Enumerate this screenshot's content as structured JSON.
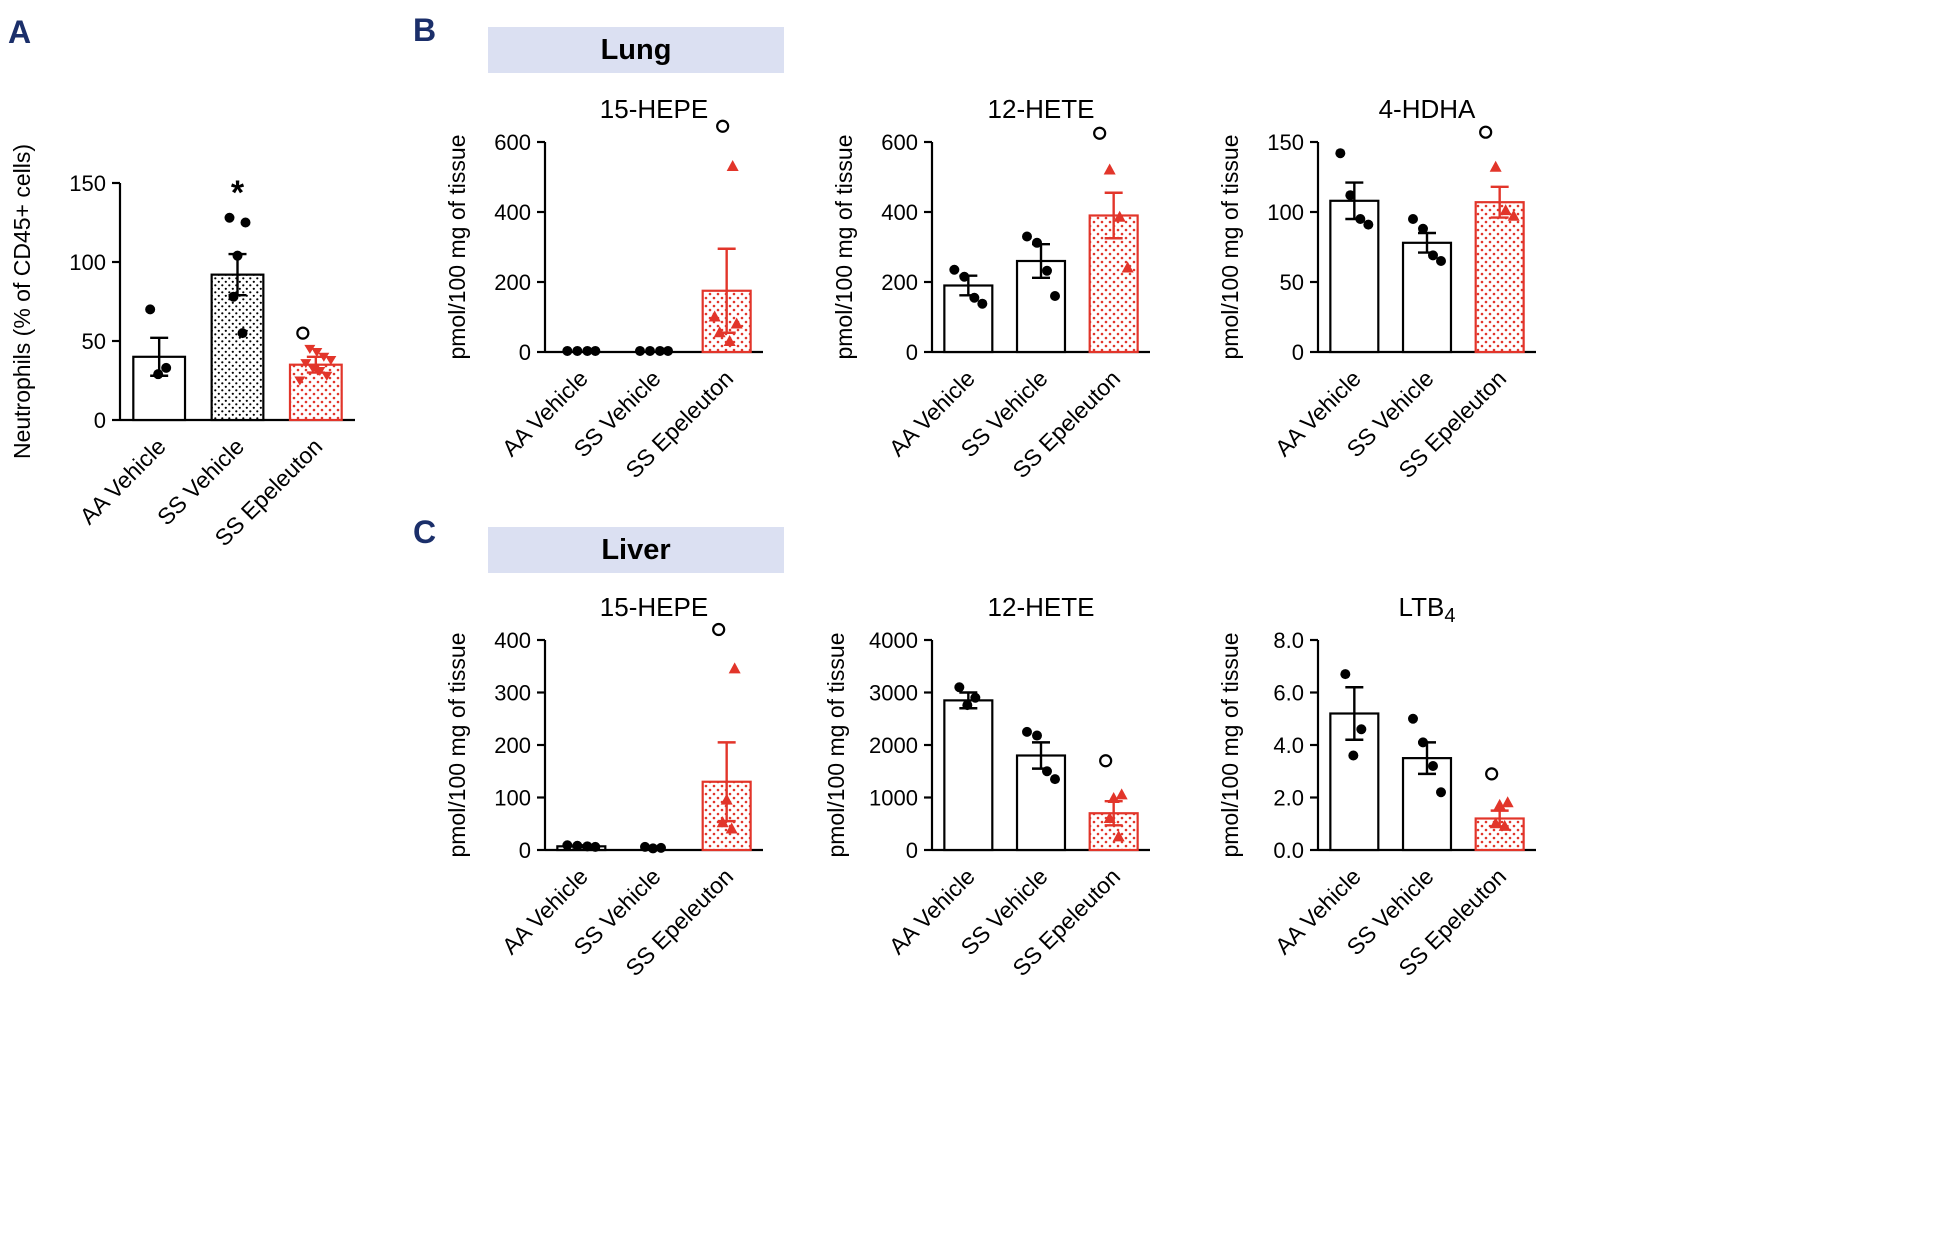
{
  "colors": {
    "red": "#e2352a",
    "black": "#000000",
    "header_bg": "#dbe0f2",
    "panel_label": "#1b2f6a"
  },
  "panels": {
    "A": {
      "label": "A"
    },
    "B": {
      "label": "B",
      "header": "Lung"
    },
    "C": {
      "label": "C",
      "header": "Liver"
    }
  },
  "chart_data": [
    {
      "id": "neutrophils",
      "panel": "A",
      "type": "bar",
      "title": "",
      "ylabel": "Neutrophils (% of CD45+ cells)",
      "ylim": [
        0,
        150
      ],
      "yticks": [
        0,
        50,
        100,
        150
      ],
      "ytick_labels": [
        "0",
        "50",
        "100",
        "150"
      ],
      "categories": [
        "AA Vehicle",
        "SS Vehicle",
        "SS Epeleuton"
      ],
      "bars": [
        {
          "label": "AA Vehicle",
          "mean": 40,
          "sem": 12,
          "fill": "white",
          "stroke": "black",
          "points": [
            {
              "v": 70,
              "m": "dot"
            },
            {
              "v": 33,
              "m": "dot"
            },
            {
              "v": 29,
              "m": "dot"
            }
          ]
        },
        {
          "label": "SS Vehicle",
          "mean": 92,
          "sem": 13,
          "fill": "dots-black",
          "stroke": "black",
          "sig": "*",
          "points": [
            {
              "v": 128,
              "m": "dot"
            },
            {
              "v": 125,
              "m": "dot"
            },
            {
              "v": 104,
              "m": "dot"
            },
            {
              "v": 78,
              "m": "dot"
            },
            {
              "v": 55,
              "m": "dot"
            }
          ]
        },
        {
          "label": "SS Epeleuton",
          "mean": 35,
          "sem": 5,
          "fill": "dots-red",
          "stroke": "red",
          "points": [
            {
              "v": 55,
              "m": "circle"
            },
            {
              "v": 45,
              "m": "tri-down"
            },
            {
              "v": 43,
              "m": "tri-down"
            },
            {
              "v": 40,
              "m": "tri-down"
            },
            {
              "v": 38,
              "m": "tri-down"
            },
            {
              "v": 36,
              "m": "tri-down"
            },
            {
              "v": 33,
              "m": "tri-down"
            },
            {
              "v": 31,
              "m": "tri-down"
            },
            {
              "v": 28,
              "m": "tri-down"
            },
            {
              "v": 25,
              "m": "tri-down"
            }
          ]
        }
      ]
    },
    {
      "id": "lung-15-hepe",
      "panel": "B",
      "type": "bar",
      "title": "15-HEPE",
      "ylabel": "pmol/100 mg of tissue",
      "ylim": [
        0,
        600
      ],
      "yticks": [
        0,
        200,
        400,
        600
      ],
      "ytick_labels": [
        "0",
        "200",
        "400",
        "600"
      ],
      "categories": [
        "AA Vehicle",
        "SS Vehicle",
        "SS Epeleuton"
      ],
      "bars": [
        {
          "label": "AA Vehicle",
          "mean": 2,
          "sem": 0,
          "fill": "white",
          "stroke": "black",
          "points": [
            {
              "v": 3,
              "m": "dot"
            },
            {
              "v": 3,
              "m": "dot"
            },
            {
              "v": 3,
              "m": "dot"
            },
            {
              "v": 3,
              "m": "dot"
            }
          ]
        },
        {
          "label": "SS Vehicle",
          "mean": 2,
          "sem": 0,
          "fill": "white",
          "stroke": "black",
          "points": [
            {
              "v": 3,
              "m": "dot"
            },
            {
              "v": 3,
              "m": "dot"
            },
            {
              "v": 3,
              "m": "dot"
            },
            {
              "v": 3,
              "m": "dot"
            }
          ]
        },
        {
          "label": "SS Epeleuton",
          "mean": 175,
          "sem": 120,
          "fill": "dots-red",
          "stroke": "red",
          "points": [
            {
              "v": 645,
              "m": "circle"
            },
            {
              "v": 530,
              "m": "tri"
            },
            {
              "v": 100,
              "m": "tri"
            },
            {
              "v": 80,
              "m": "tri"
            },
            {
              "v": 55,
              "m": "tri"
            },
            {
              "v": 30,
              "m": "tri"
            }
          ]
        }
      ]
    },
    {
      "id": "lung-12-hete",
      "panel": "B",
      "type": "bar",
      "title": "12-HETE",
      "ylabel": "pmol/100 mg of tissue",
      "ylim": [
        0,
        600
      ],
      "yticks": [
        0,
        200,
        400,
        600
      ],
      "ytick_labels": [
        "0",
        "200",
        "400",
        "600"
      ],
      "categories": [
        "AA Vehicle",
        "SS Vehicle",
        "SS Epeleuton"
      ],
      "bars": [
        {
          "label": "AA Vehicle",
          "mean": 190,
          "sem": 28,
          "fill": "white",
          "stroke": "black",
          "points": [
            {
              "v": 235,
              "m": "dot"
            },
            {
              "v": 215,
              "m": "dot"
            },
            {
              "v": 155,
              "m": "dot"
            },
            {
              "v": 138,
              "m": "dot"
            }
          ]
        },
        {
          "label": "SS Vehicle",
          "mean": 260,
          "sem": 48,
          "fill": "white",
          "stroke": "black",
          "points": [
            {
              "v": 330,
              "m": "dot"
            },
            {
              "v": 312,
              "m": "dot"
            },
            {
              "v": 232,
              "m": "dot"
            },
            {
              "v": 160,
              "m": "dot"
            }
          ]
        },
        {
          "label": "SS Epeleuton",
          "mean": 390,
          "sem": 65,
          "fill": "dots-red",
          "stroke": "red",
          "points": [
            {
              "v": 625,
              "m": "circle"
            },
            {
              "v": 520,
              "m": "tri"
            },
            {
              "v": 385,
              "m": "tri"
            },
            {
              "v": 240,
              "m": "tri"
            }
          ]
        }
      ]
    },
    {
      "id": "lung-4-hdha",
      "panel": "B",
      "type": "bar",
      "title": "4-HDHA",
      "ylabel": "pmol/100 mg of tissue",
      "ylim": [
        0,
        150
      ],
      "yticks": [
        0,
        50,
        100,
        150
      ],
      "ytick_labels": [
        "0",
        "50",
        "100",
        "150"
      ],
      "categories": [
        "AA Vehicle",
        "SS Vehicle",
        "SS Epeleuton"
      ],
      "bars": [
        {
          "label": "AA Vehicle",
          "mean": 108,
          "sem": 13,
          "fill": "white",
          "stroke": "black",
          "points": [
            {
              "v": 142,
              "m": "dot"
            },
            {
              "v": 112,
              "m": "dot"
            },
            {
              "v": 95,
              "m": "dot"
            },
            {
              "v": 91,
              "m": "dot"
            }
          ]
        },
        {
          "label": "SS Vehicle",
          "mean": 78,
          "sem": 7,
          "fill": "white",
          "stroke": "black",
          "points": [
            {
              "v": 95,
              "m": "dot"
            },
            {
              "v": 88,
              "m": "dot"
            },
            {
              "v": 69,
              "m": "dot"
            },
            {
              "v": 65,
              "m": "dot"
            }
          ]
        },
        {
          "label": "SS Epeleuton",
          "mean": 107,
          "sem": 11,
          "fill": "dots-red",
          "stroke": "red",
          "points": [
            {
              "v": 157,
              "m": "circle"
            },
            {
              "v": 132,
              "m": "tri"
            },
            {
              "v": 101,
              "m": "tri"
            },
            {
              "v": 97,
              "m": "tri"
            }
          ]
        }
      ]
    },
    {
      "id": "liver-15-hepe",
      "panel": "C",
      "type": "bar",
      "title": "15-HEPE",
      "ylabel": "pmol/100 mg of tissue",
      "ylim": [
        0,
        400
      ],
      "yticks": [
        0,
        100,
        200,
        300,
        400
      ],
      "ytick_labels": [
        "0",
        "100",
        "200",
        "300",
        "400"
      ],
      "categories": [
        "AA Vehicle",
        "SS Vehicle",
        "SS Epeleuton"
      ],
      "bars": [
        {
          "label": "AA Vehicle",
          "mean": 7,
          "sem": 2,
          "fill": "white",
          "stroke": "black",
          "points": [
            {
              "v": 9,
              "m": "dot"
            },
            {
              "v": 8,
              "m": "dot"
            },
            {
              "v": 7,
              "m": "dot"
            },
            {
              "v": 6,
              "m": "dot"
            }
          ]
        },
        {
          "label": "SS Vehicle",
          "mean": 4,
          "sem": 1,
          "fill": "white",
          "stroke": "black",
          "points": [
            {
              "v": 6,
              "m": "dot"
            },
            {
              "v": 4,
              "m": "dot"
            },
            {
              "v": 3,
              "m": "dot"
            }
          ]
        },
        {
          "label": "SS Epeleuton",
          "mean": 130,
          "sem": 75,
          "fill": "dots-red",
          "stroke": "red",
          "points": [
            {
              "v": 420,
              "m": "circle"
            },
            {
              "v": 345,
              "m": "tri"
            },
            {
              "v": 95,
              "m": "tri"
            },
            {
              "v": 52,
              "m": "tri"
            },
            {
              "v": 40,
              "m": "tri"
            }
          ]
        }
      ]
    },
    {
      "id": "liver-12-hete",
      "panel": "C",
      "type": "bar",
      "title": "12-HETE",
      "ylabel": "pmol/100 mg of tissue",
      "ylim": [
        0,
        4000
      ],
      "yticks": [
        0,
        1000,
        2000,
        3000,
        4000
      ],
      "ytick_labels": [
        "0",
        "1000",
        "2000",
        "3000",
        "4000"
      ],
      "categories": [
        "AA Vehicle",
        "SS Vehicle",
        "SS Epeleuton"
      ],
      "bars": [
        {
          "label": "AA Vehicle",
          "mean": 2850,
          "sem": 150,
          "fill": "white",
          "stroke": "black",
          "points": [
            {
              "v": 3100,
              "m": "dot"
            },
            {
              "v": 2900,
              "m": "dot"
            },
            {
              "v": 2760,
              "m": "dot"
            }
          ]
        },
        {
          "label": "SS Vehicle",
          "mean": 1800,
          "sem": 250,
          "fill": "white",
          "stroke": "black",
          "points": [
            {
              "v": 2250,
              "m": "dot"
            },
            {
              "v": 2180,
              "m": "dot"
            },
            {
              "v": 1500,
              "m": "dot"
            },
            {
              "v": 1350,
              "m": "dot"
            }
          ]
        },
        {
          "label": "SS Epeleuton",
          "mean": 700,
          "sem": 230,
          "fill": "dots-red",
          "stroke": "red",
          "points": [
            {
              "v": 1700,
              "m": "circle"
            },
            {
              "v": 1050,
              "m": "tri"
            },
            {
              "v": 980,
              "m": "tri"
            },
            {
              "v": 600,
              "m": "tri"
            },
            {
              "v": 250,
              "m": "tri"
            }
          ]
        }
      ]
    },
    {
      "id": "liver-ltb4",
      "panel": "C",
      "type": "bar",
      "title": "LTB",
      "title_sub": "4",
      "ylabel": "pmol/100 mg of tissue",
      "ylim": [
        0,
        8
      ],
      "yticks": [
        0,
        2,
        4,
        6,
        8
      ],
      "ytick_labels": [
        "0.0",
        "2.0",
        "4.0",
        "6.0",
        "8.0"
      ],
      "categories": [
        "AA Vehicle",
        "SS Vehicle",
        "SS Epeleuton"
      ],
      "bars": [
        {
          "label": "AA Vehicle",
          "mean": 5.2,
          "sem": 1.0,
          "fill": "white",
          "stroke": "black",
          "points": [
            {
              "v": 6.7,
              "m": "dot"
            },
            {
              "v": 4.6,
              "m": "dot"
            },
            {
              "v": 3.6,
              "m": "dot"
            }
          ]
        },
        {
          "label": "SS Vehicle",
          "mean": 3.5,
          "sem": 0.6,
          "fill": "white",
          "stroke": "black",
          "points": [
            {
              "v": 5.0,
              "m": "dot"
            },
            {
              "v": 4.1,
              "m": "dot"
            },
            {
              "v": 3.2,
              "m": "dot"
            },
            {
              "v": 2.2,
              "m": "dot"
            }
          ]
        },
        {
          "label": "SS Epeleuton",
          "mean": 1.2,
          "sem": 0.3,
          "fill": "dots-red",
          "stroke": "red",
          "points": [
            {
              "v": 2.9,
              "m": "circle"
            },
            {
              "v": 1.8,
              "m": "tri"
            },
            {
              "v": 1.7,
              "m": "tri"
            },
            {
              "v": 1.0,
              "m": "tri"
            },
            {
              "v": 0.9,
              "m": "tri"
            }
          ]
        }
      ]
    }
  ]
}
